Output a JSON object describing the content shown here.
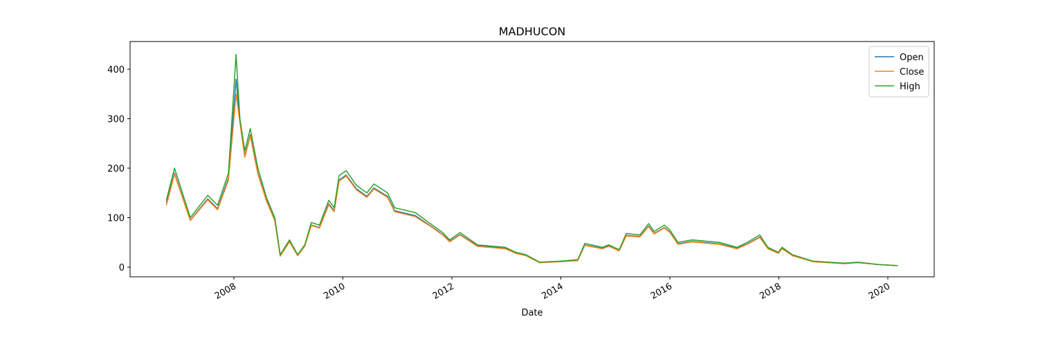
{
  "chart_data": {
    "type": "line",
    "title": "MADHUCON",
    "x_label": "Date",
    "x": [
      2006.76,
      2006.91,
      2007.2,
      2007.52,
      2007.7,
      2007.9,
      2008.04,
      2008.11,
      2008.2,
      2008.3,
      2008.44,
      2008.6,
      2008.75,
      2008.85,
      2009.02,
      2009.17,
      2009.3,
      2009.42,
      2009.57,
      2009.74,
      2009.84,
      2009.93,
      2010.06,
      2010.25,
      2010.44,
      2010.57,
      2010.82,
      2010.95,
      2011.33,
      2011.64,
      2011.83,
      2011.96,
      2012.15,
      2012.47,
      2012.98,
      2013.17,
      2013.36,
      2013.61,
      2013.99,
      2014.31,
      2014.44,
      2014.76,
      2014.88,
      2015.07,
      2015.2,
      2015.45,
      2015.61,
      2015.71,
      2015.9,
      2016.0,
      2016.15,
      2016.41,
      2016.91,
      2017.23,
      2017.42,
      2017.65,
      2017.8,
      2017.99,
      2018.06,
      2018.25,
      2018.63,
      2019.2,
      2019.45,
      2019.84,
      2020.18
    ],
    "series": [
      {
        "name": "Open",
        "color": "#1f77b4",
        "values": [
          130,
          190,
          95,
          138,
          118,
          180,
          380,
          295,
          225,
          268,
          190,
          135,
          95,
          23,
          52,
          24,
          43,
          85,
          80,
          128,
          114,
          176,
          186,
          158,
          143,
          160,
          143,
          114,
          104,
          81,
          66,
          52,
          66,
          43,
          38,
          28,
          24,
          9,
          11,
          14,
          45,
          38,
          43,
          33,
          64,
          62,
          83,
          68,
          80,
          71,
          47,
          52,
          47,
          38,
          47,
          61,
          38,
          28,
          38,
          24,
          11,
          7,
          9,
          5,
          3
        ]
      },
      {
        "name": "Close",
        "color": "#ff7f0e",
        "values": [
          125,
          188,
          94,
          136,
          116,
          176,
          350,
          292,
          222,
          265,
          188,
          133,
          94,
          22,
          51,
          23,
          42,
          84,
          79,
          126,
          112,
          174,
          184,
          156,
          141,
          158,
          141,
          112,
          102,
          80,
          65,
          51,
          65,
          42,
          37,
          28,
          23,
          9,
          11,
          13,
          44,
          37,
          42,
          33,
          63,
          61,
          82,
          67,
          79,
          70,
          46,
          51,
          46,
          37,
          46,
          60,
          37,
          28,
          37,
          23,
          11,
          7,
          9,
          5,
          3
        ]
      },
      {
        "name": "High",
        "color": "#2ca02c",
        "values": [
          135,
          200,
          100,
          145,
          125,
          190,
          430,
          300,
          235,
          280,
          200,
          140,
          100,
          25,
          55,
          25,
          45,
          90,
          85,
          135,
          120,
          185,
          195,
          165,
          150,
          168,
          150,
          120,
          110,
          85,
          70,
          55,
          70,
          45,
          40,
          30,
          25,
          10,
          12,
          15,
          48,
          40,
          45,
          35,
          68,
          65,
          88,
          72,
          85,
          75,
          50,
          55,
          50,
          40,
          50,
          65,
          40,
          30,
          40,
          25,
          12,
          8,
          10,
          5,
          3
        ]
      }
    ],
    "xlim": [
      2006.095,
      2020.851
    ],
    "xticks": [
      2008,
      2010,
      2012,
      2014,
      2016,
      2018,
      2020
    ],
    "ylim": [
      -19.6,
      456
    ],
    "yticks": [
      0,
      100,
      200,
      300,
      400
    ],
    "legend": "upper right",
    "grid": false
  }
}
